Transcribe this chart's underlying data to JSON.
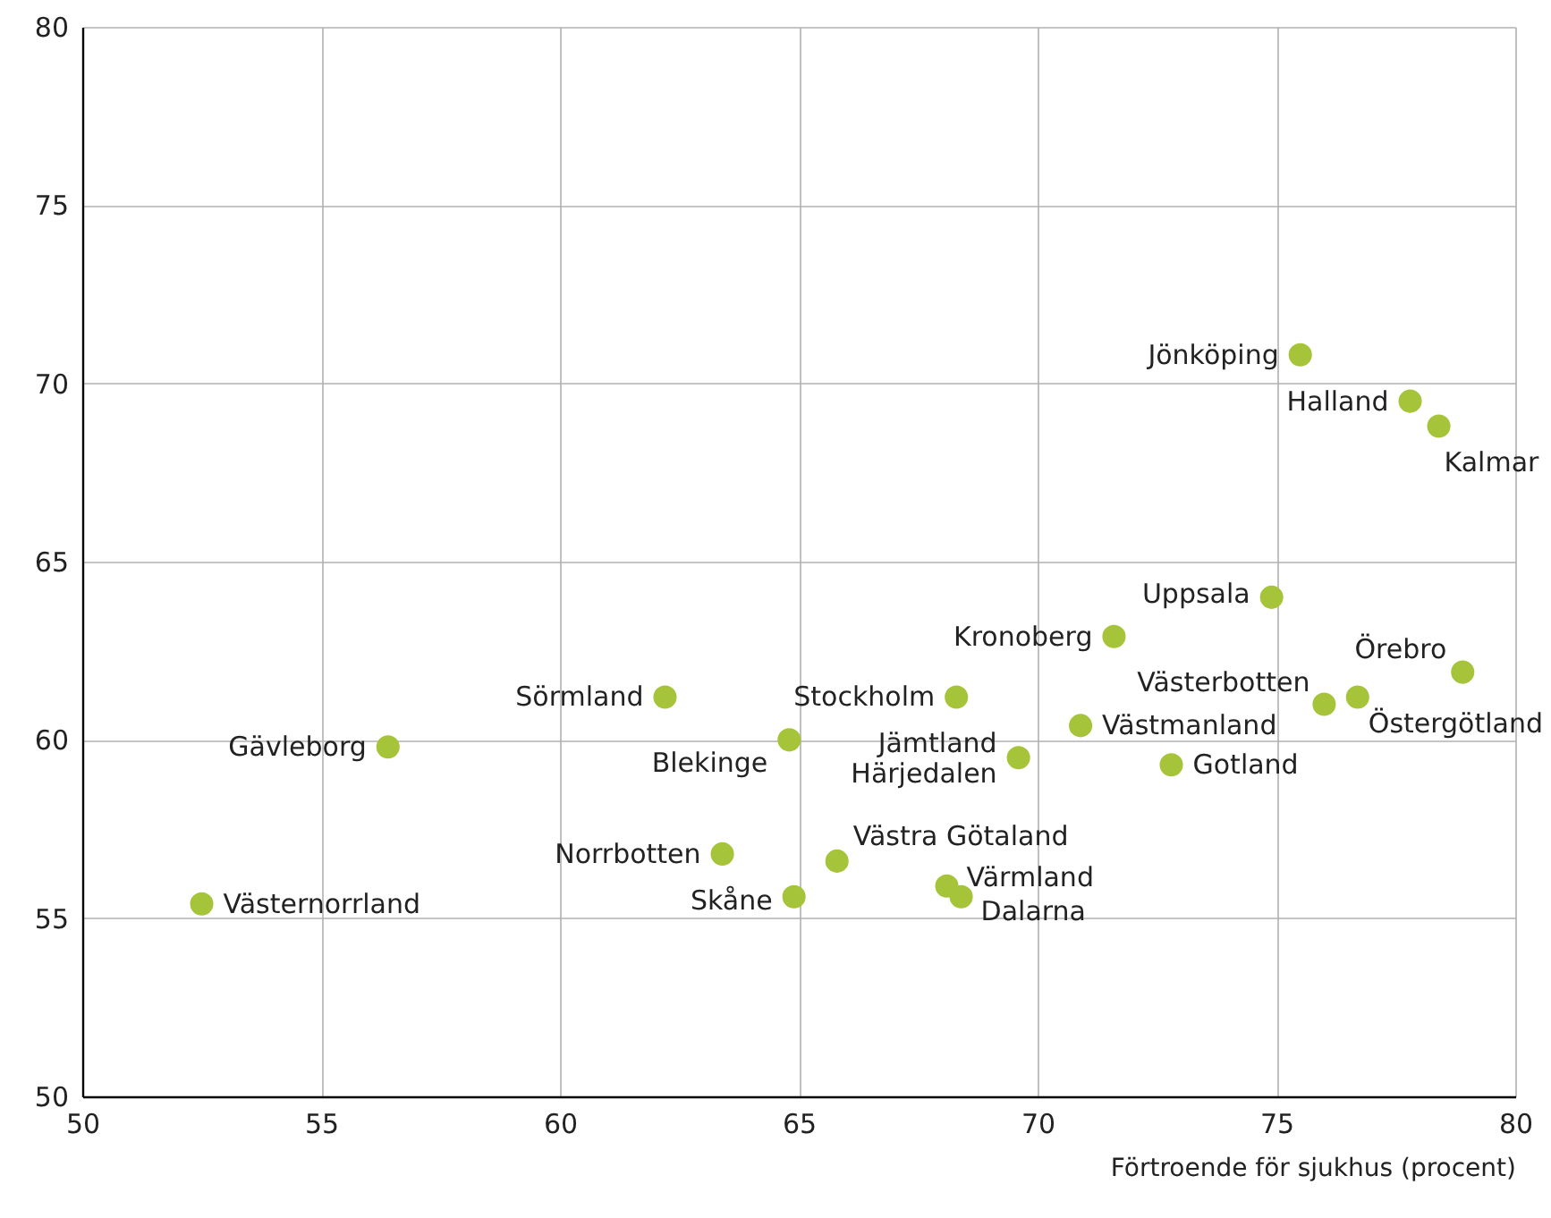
{
  "chart_data": {
    "type": "scatter",
    "xlabel": "Förtroende för sjukhus (procent)",
    "xlim": [
      50,
      80
    ],
    "xticks": [
      50,
      55,
      60,
      65,
      70,
      75,
      80
    ],
    "ylim": [
      50,
      80
    ],
    "yticks": [
      50,
      55,
      60,
      65,
      70,
      75,
      80
    ],
    "grid": true,
    "marker": "circle",
    "series": [
      {
        "color": "#a5c43a",
        "x": [
          52.5,
          56.4,
          62.2,
          64.8,
          63.4,
          64.9,
          65.8,
          68.3,
          68.1,
          68.4,
          69.6,
          70.9,
          72.8,
          71.6,
          74.9,
          75.5,
          77.8,
          78.4,
          76.0,
          76.7,
          78.9
        ],
        "values": [
          55.4,
          59.8,
          61.2,
          60.0,
          56.8,
          55.6,
          56.6,
          61.2,
          55.9,
          55.6,
          59.5,
          60.4,
          59.3,
          62.9,
          64.0,
          70.8,
          69.5,
          68.8,
          61.0,
          61.2,
          61.9
        ]
      }
    ],
    "annotations": [
      {
        "text": "Västernorrland",
        "x": 52.5,
        "y": 55.4
      },
      {
        "text": "Gävleborg",
        "x": 56.4,
        "y": 59.8
      },
      {
        "text": "Sörmland",
        "x": 62.2,
        "y": 61.2
      },
      {
        "text": "Blekinge",
        "x": 64.8,
        "y": 60.0
      },
      {
        "text": "Norrbotten",
        "x": 63.4,
        "y": 56.8
      },
      {
        "text": "Skåne",
        "x": 64.9,
        "y": 55.6
      },
      {
        "text": "Västra Götaland",
        "x": 65.8,
        "y": 56.6
      },
      {
        "text": "Stockholm",
        "x": 68.3,
        "y": 61.2
      },
      {
        "text": "Värmland",
        "x": 68.1,
        "y": 55.9
      },
      {
        "text": "Dalarna",
        "x": 68.4,
        "y": 55.6
      },
      {
        "text": "Jämtland\nHärjedalen",
        "x": 69.6,
        "y": 59.5
      },
      {
        "text": "Västmanland",
        "x": 70.9,
        "y": 60.4
      },
      {
        "text": "Gotland",
        "x": 72.8,
        "y": 59.3
      },
      {
        "text": "Kronoberg",
        "x": 71.6,
        "y": 62.9
      },
      {
        "text": "Uppsala",
        "x": 74.9,
        "y": 64.0
      },
      {
        "text": "Jönköping",
        "x": 75.5,
        "y": 70.8
      },
      {
        "text": "Halland",
        "x": 77.8,
        "y": 69.5
      },
      {
        "text": "Kalmar",
        "x": 78.4,
        "y": 68.8
      },
      {
        "text": "Västerbotten",
        "x": 76.0,
        "y": 61.0
      },
      {
        "text": "Östergötland",
        "x": 76.7,
        "y": 61.2
      },
      {
        "text": "Örebro",
        "x": 78.9,
        "y": 61.9
      }
    ]
  }
}
